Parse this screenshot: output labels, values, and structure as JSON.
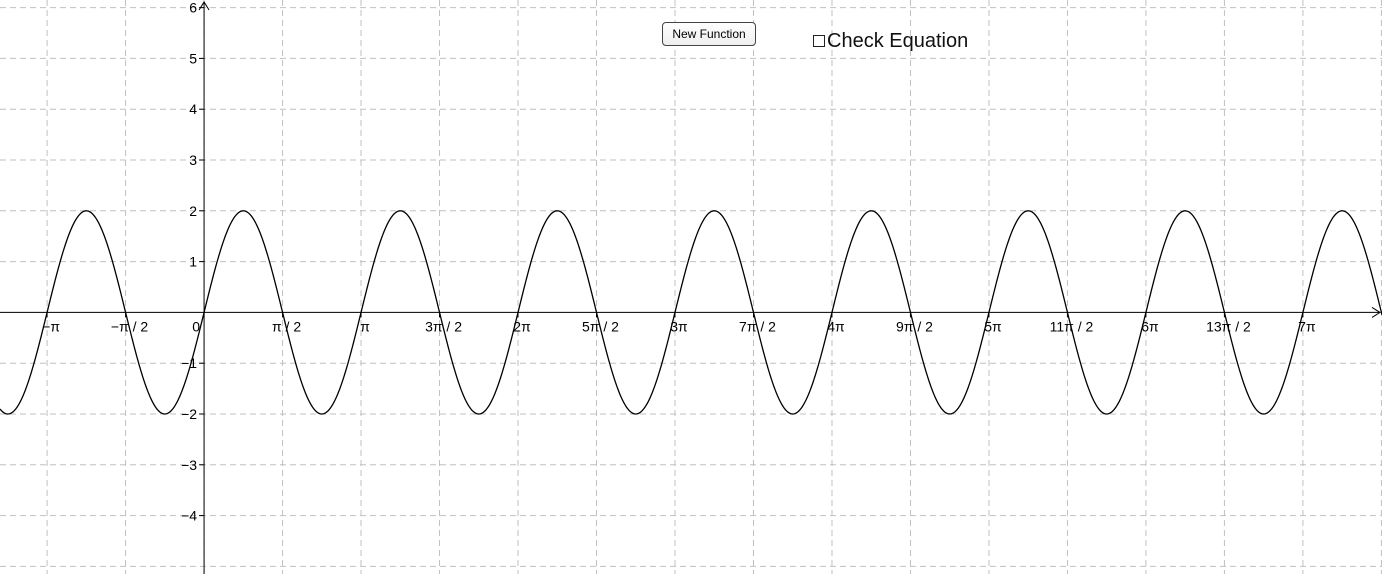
{
  "controls": {
    "new_function_label": "New Function",
    "check_equation_label": "Check Equation",
    "check_equation_checked": false
  },
  "chart_data": {
    "type": "line",
    "title": "",
    "xlabel": "",
    "ylabel": "",
    "xlim": [
      -4.084,
      23.574
    ],
    "ylim": [
      -5.15,
      6.15
    ],
    "grid": true,
    "x_unit": "pi",
    "x_tick_step": 1.5708,
    "x_ticks": [
      {
        "value": -3.1416,
        "label": "−π"
      },
      {
        "value": -1.5708,
        "label": "−π / 2"
      },
      {
        "value": 0,
        "label": "0"
      },
      {
        "value": 1.5708,
        "label": "π / 2"
      },
      {
        "value": 3.1416,
        "label": "π"
      },
      {
        "value": 4.7124,
        "label": "3π / 2"
      },
      {
        "value": 6.2832,
        "label": "2π"
      },
      {
        "value": 7.854,
        "label": "5π / 2"
      },
      {
        "value": 9.4248,
        "label": "3π"
      },
      {
        "value": 10.9956,
        "label": "7π / 2"
      },
      {
        "value": 12.5664,
        "label": "4π"
      },
      {
        "value": 14.1372,
        "label": "9π / 2"
      },
      {
        "value": 15.708,
        "label": "5π"
      },
      {
        "value": 17.2788,
        "label": "11π / 2"
      },
      {
        "value": 18.8496,
        "label": "6π"
      },
      {
        "value": 20.4204,
        "label": "13π / 2"
      },
      {
        "value": 21.9911,
        "label": "7π"
      }
    ],
    "y_ticks": [
      {
        "value": 6,
        "label": "6"
      },
      {
        "value": 5,
        "label": "5"
      },
      {
        "value": 4,
        "label": "4"
      },
      {
        "value": 3,
        "label": "3"
      },
      {
        "value": 2,
        "label": "2"
      },
      {
        "value": 1,
        "label": "1"
      },
      {
        "value": -1,
        "label": "−1"
      },
      {
        "value": -2,
        "label": "−2"
      },
      {
        "value": -3,
        "label": "−3"
      },
      {
        "value": -4,
        "label": "−4"
      }
    ],
    "series": [
      {
        "amplitude": 2,
        "angular_frequency": 2,
        "phase": 0,
        "color": "#000000"
      }
    ],
    "colors": {
      "grid": "#c0c0c0",
      "axis": "#000000"
    }
  }
}
